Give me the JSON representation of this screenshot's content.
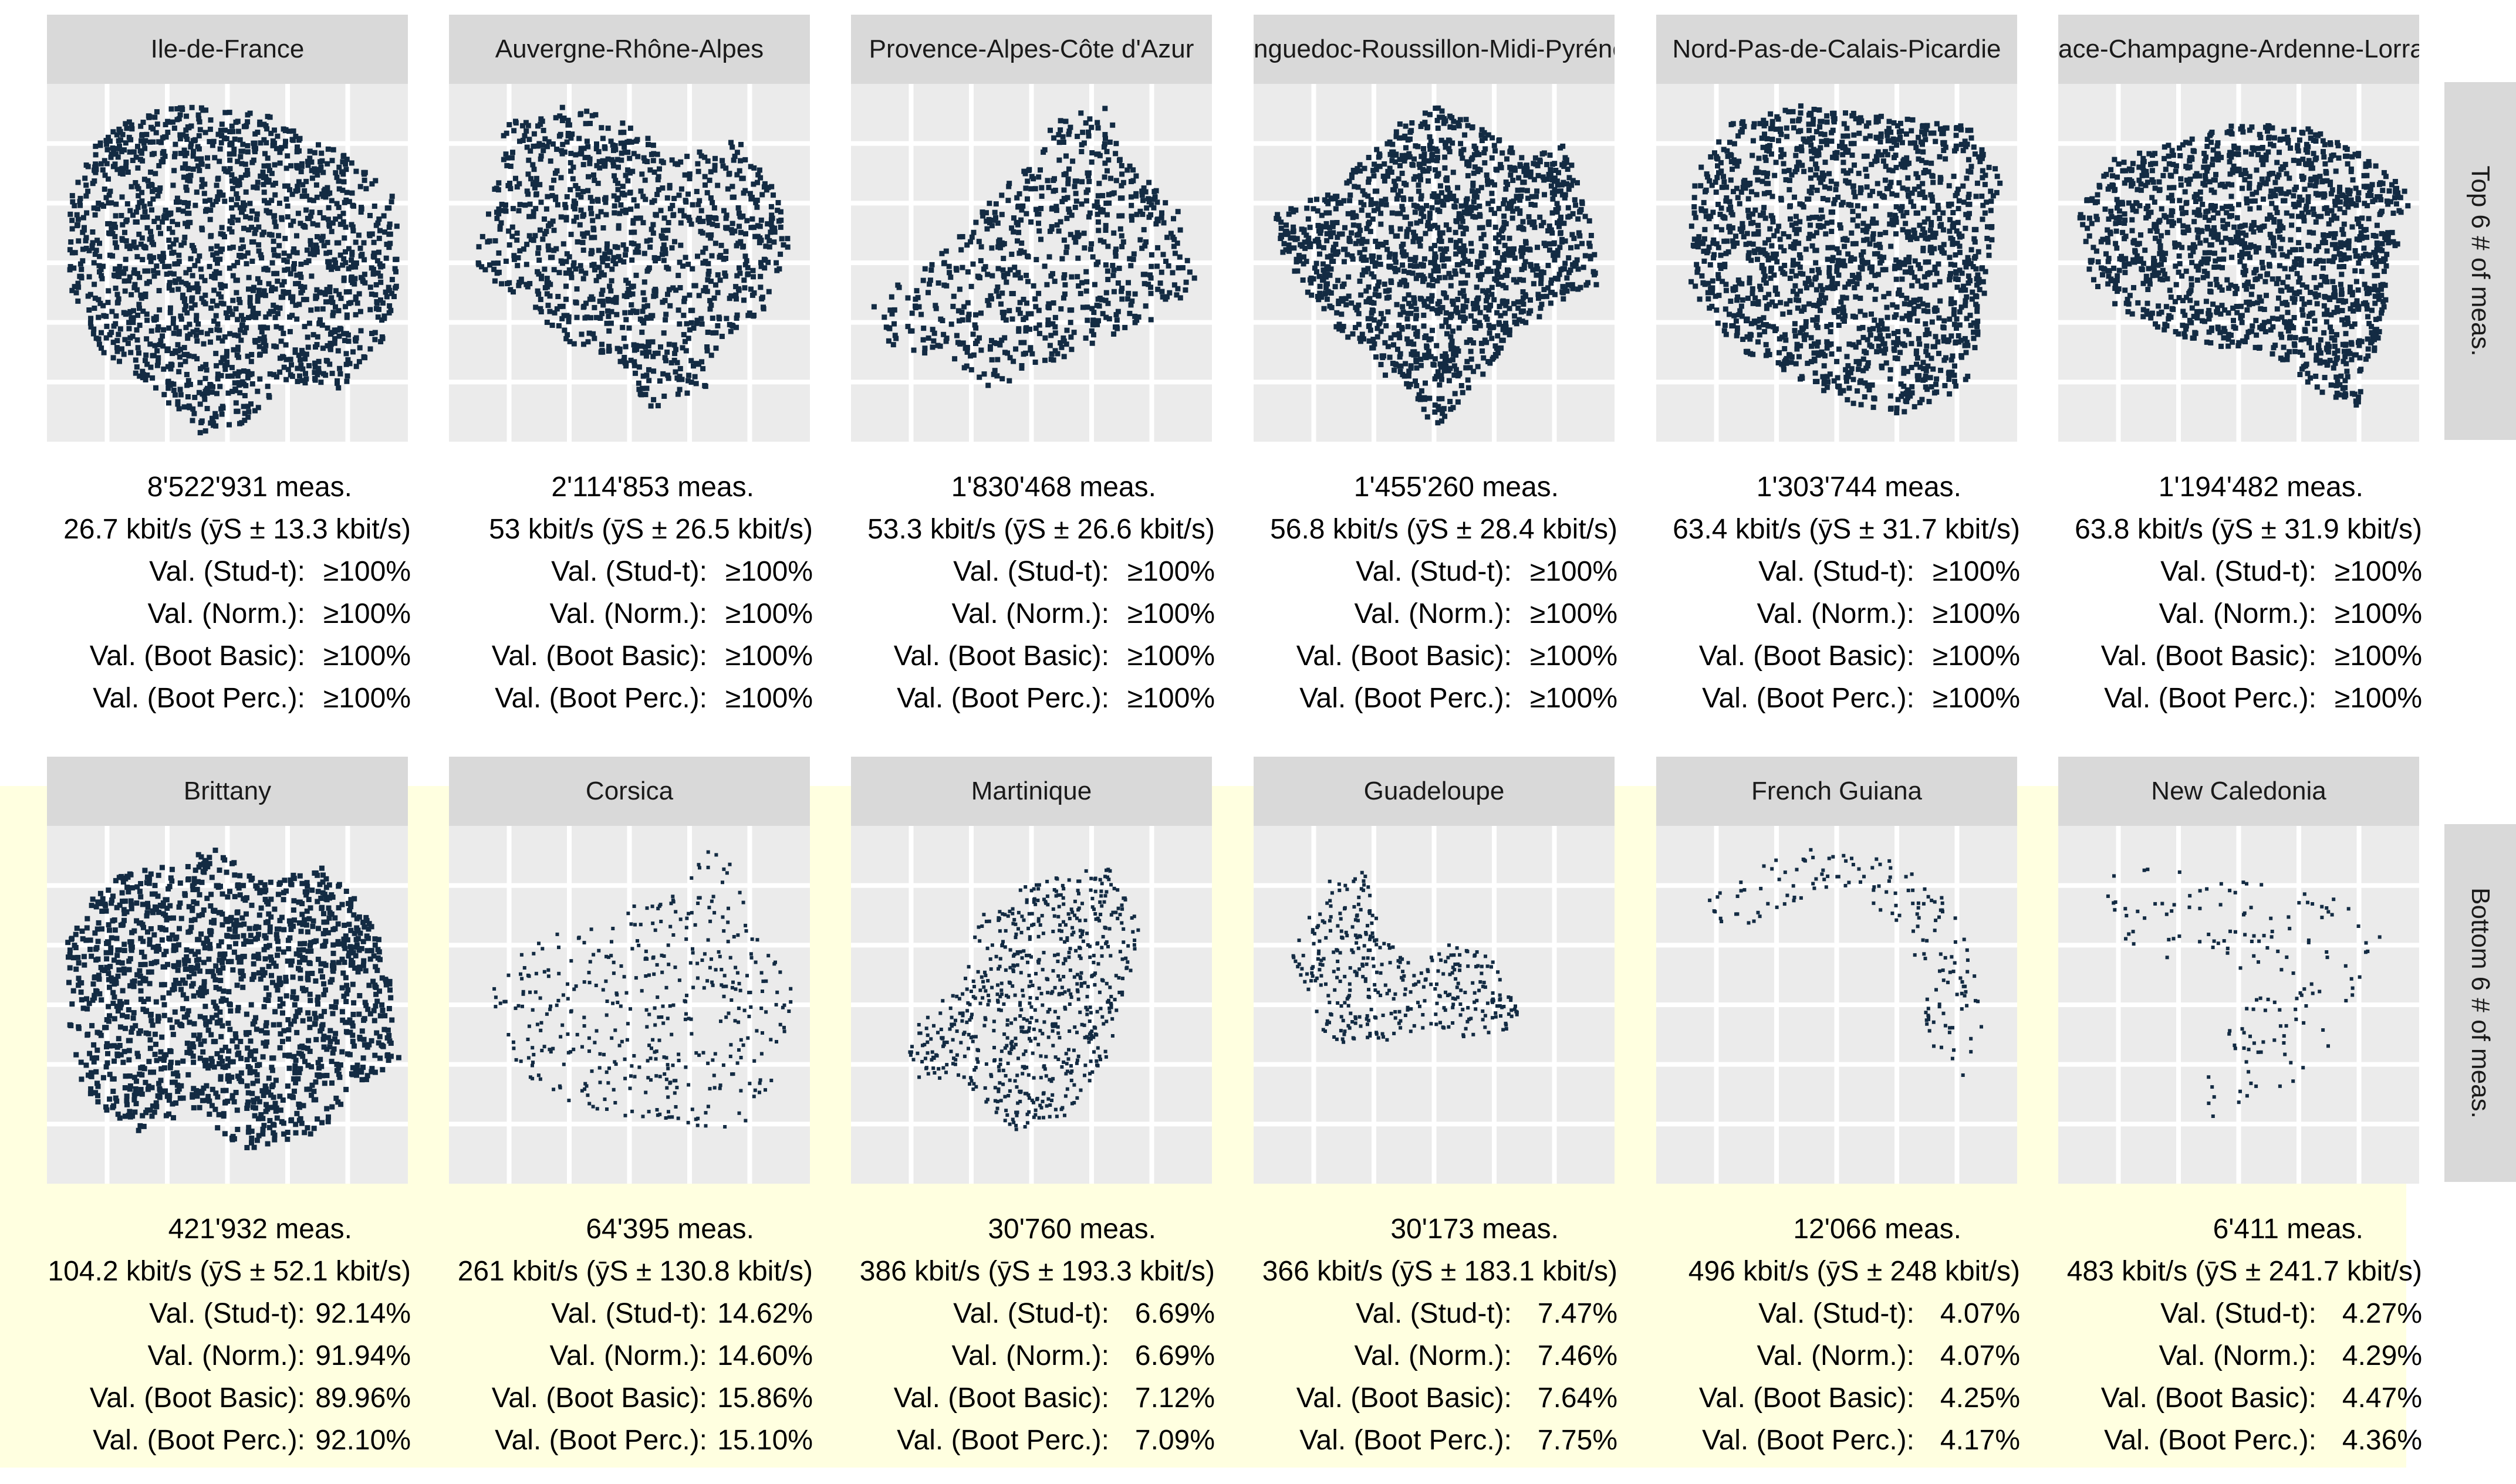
{
  "chart_data": {
    "type": "map-facets",
    "colors": {
      "panel_bg": "#ebebeb",
      "strip_bg": "#d9d9d9",
      "points": "#132b43",
      "highlight": "#ffffe0"
    },
    "row_labels": [
      "Top 6 # of meas.",
      "Bottom 6 # of meas."
    ],
    "stat_labels": [
      "Val. (Stud-t):",
      "Val. (Norm.):",
      "Val. (Boot Basic):",
      "Val. (Boot Perc.):"
    ],
    "panels": [
      {
        "region": "Ile-de-France",
        "meas": "8'522'931 meas.",
        "rate": "26.7 kbit/s (ȳS ± 13.3 kbit/s)",
        "vals": [
          "≥100%",
          "≥100%",
          "≥100%",
          "≥100%"
        ]
      },
      {
        "region": "Auvergne-Rhône-Alpes",
        "meas": "2'114'853 meas.",
        "rate": "53 kbit/s (ȳS ± 26.5 kbit/s)",
        "vals": [
          "≥100%",
          "≥100%",
          "≥100%",
          "≥100%"
        ]
      },
      {
        "region": "Provence-Alpes-Côte d'Azur",
        "meas": "1'830'468 meas.",
        "rate": "53.3 kbit/s (ȳS ± 26.6 kbit/s)",
        "vals": [
          "≥100%",
          "≥100%",
          "≥100%",
          "≥100%"
        ]
      },
      {
        "region": "nguedoc-Roussillon-Midi-Pyréné",
        "meas": "1'455'260 meas.",
        "rate": "56.8 kbit/s (ȳS ± 28.4 kbit/s)",
        "vals": [
          "≥100%",
          "≥100%",
          "≥100%",
          "≥100%"
        ]
      },
      {
        "region": "Nord-Pas-de-Calais-Picardie",
        "meas": "1'303'744 meas.",
        "rate": "63.4 kbit/s (ȳS ± 31.7 kbit/s)",
        "vals": [
          "≥100%",
          "≥100%",
          "≥100%",
          "≥100%"
        ]
      },
      {
        "region": "ace-Champagne-Ardenne-Lorra",
        "meas": "1'194'482 meas.",
        "rate": "63.8 kbit/s (ȳS ± 31.9 kbit/s)",
        "vals": [
          "≥100%",
          "≥100%",
          "≥100%",
          "≥100%"
        ]
      },
      {
        "region": "Brittany",
        "meas": "421'932 meas.",
        "rate": "104.2 kbit/s (ȳS ± 52.1 kbit/s)",
        "vals": [
          "92.14%",
          "91.94%",
          "89.96%",
          "92.10%"
        ]
      },
      {
        "region": "Corsica",
        "meas": "64'395 meas.",
        "rate": "261 kbit/s (ȳS ± 130.8 kbit/s)",
        "vals": [
          "14.62%",
          "14.60%",
          "15.86%",
          "15.10%"
        ]
      },
      {
        "region": "Martinique",
        "meas": "30'760 meas.",
        "rate": "386 kbit/s (ȳS ± 193.3 kbit/s)",
        "vals": [
          "6.69%",
          "6.69%",
          "7.12%",
          "7.09%"
        ]
      },
      {
        "region": "Guadeloupe",
        "meas": "30'173 meas.",
        "rate": "366 kbit/s (ȳS ± 183.1 kbit/s)",
        "vals": [
          "7.47%",
          "7.46%",
          "7.64%",
          "7.75%"
        ]
      },
      {
        "region": "French Guiana",
        "meas": "12'066 meas.",
        "rate": "496 kbit/s (ȳS ± 248 kbit/s)",
        "vals": [
          "4.07%",
          "4.07%",
          "4.25%",
          "4.17%"
        ]
      },
      {
        "region": "New Caledonia",
        "meas": "6'411 meas.",
        "rate": "483 kbit/s (ȳS ± 241.7 kbit/s)",
        "vals": [
          "4.27%",
          "4.29%",
          "4.47%",
          "4.36%"
        ]
      }
    ]
  }
}
